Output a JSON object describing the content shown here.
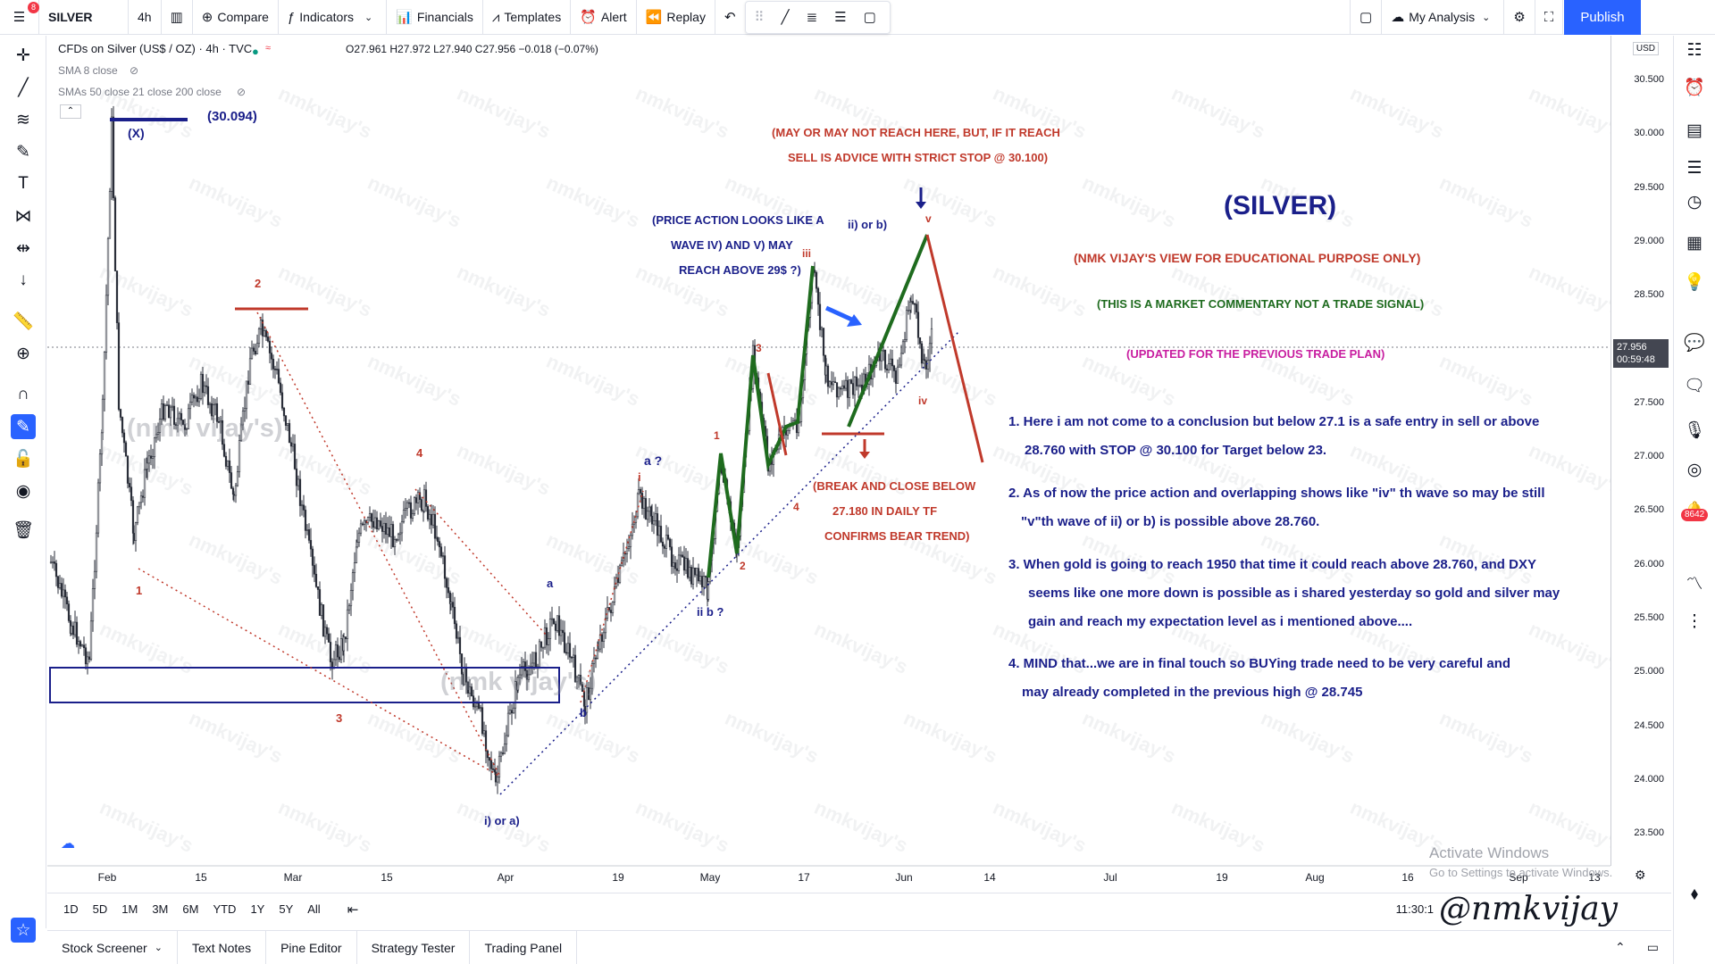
{
  "topbar": {
    "menu_badge": "8",
    "symbol": "SILVER",
    "interval": "4h",
    "compare": "Compare",
    "indicators": "Indicators",
    "financials": "Financials",
    "templates": "Templates",
    "alert": "Alert",
    "replay": "Replay",
    "layout": "My Analysis",
    "publish": "Publish"
  },
  "legend": {
    "instrument": "CFDs on Silver (US$ / OZ) · 4h · TVC",
    "ohlc": "O27.961 H27.972 L27.940 C27.956 −0.018 (−0.07%)",
    "sma1": "SMA 8 close",
    "sma2": "SMAs 50 close 21 close 200 close"
  },
  "price_scale": {
    "currency": "USD",
    "ticks": [
      "30.500",
      "30.000",
      "29.500",
      "29.000",
      "28.500",
      "27.500",
      "27.000",
      "26.500",
      "26.000",
      "25.500",
      "25.000",
      "24.500",
      "24.000",
      "23.500"
    ],
    "last_price": "27.956",
    "countdown": "00:59:48"
  },
  "time_axis": {
    "ticks": [
      "Feb",
      "15",
      "Mar",
      "15",
      "Apr",
      "19",
      "May",
      "17",
      "Jun",
      "14",
      "Jul",
      "19",
      "Aug",
      "16",
      "Sep",
      "13"
    ]
  },
  "annotations": {
    "top_value": "(30.094)",
    "x_label": "(X)",
    "wave_2": "2",
    "wave_4": "4",
    "wave_1": "1",
    "wave_3": "3",
    "wave_a": "a",
    "wave_b": "b",
    "wave_a_q": "a ?",
    "wave_i": "i",
    "wave_ii_b": "ii  b ?",
    "wave_i_or_a": "i)  or a)",
    "sub_1": "1",
    "sub_2": "2",
    "sub_3": "3",
    "sub_4": "4",
    "wave_iii": "iii",
    "wave_iv": "iv",
    "wave_v": "v",
    "wave_ii_or_b": "ii) or b)",
    "may_reach_1": "(MAY OR MAY NOT REACH HERE, BUT, IF IT REACH",
    "may_reach_2": "SELL IS ADVICE WITH STRICT STOP @ 30.100)",
    "price_action_1": "(PRICE ACTION LOOKS LIKE A",
    "price_action_2": "WAVE IV) AND V) MAY",
    "price_action_3": "REACH ABOVE 29$ ?)",
    "break_1": "(BREAK AND CLOSE BELOW",
    "break_2": "27.180  IN DAILY TF",
    "break_3": "CONFIRMS BEAR TREND)",
    "wm_1": "(nmk vijay's)",
    "wm_2": "(nmk vijay's)"
  },
  "commentary": {
    "title": "(SILVER)",
    "subtitle": "(NMK VIJAY'S VIEW FOR EDUCATIONAL PURPOSE ONLY)",
    "disclaimer": "(THIS IS A MARKET COMMENTARY NOT A TRADE SIGNAL)",
    "updated": "(UPDATED FOR THE PREVIOUS TRADE PLAN)",
    "p1_l1": "1. Here i am not come to a conclusion but below 27.1 is a safe entry in sell or above",
    "p1_l2": "28.760 with STOP @ 30.100 for Target below 23.",
    "p2_l1": "2. As of now the price action and overlapping shows like \"iv\" th wave so may be still",
    "p2_l2": "\"v\"th wave of ii) or b) is possible above 28.760.",
    "p3_l1": "3. When gold is going to reach 1950 that time it could reach above 28.760, and DXY",
    "p3_l2": "seems like one more down is possible as i shared yesterday so gold and silver may",
    "p3_l3": "gain and reach my expectation level as i mentioned above....",
    "p4_l1": "4. MIND that...we are in final touch so BUYing trade need to be very careful and",
    "p4_l2": "may already completed in the previous high @ 28.745"
  },
  "watermark_text": "nmkvijay's",
  "activate": {
    "line1": "Activate Windows",
    "line2": "Go to Settings to activate Windows."
  },
  "bottom": {
    "ranges": [
      "1D",
      "5D",
      "1M",
      "3M",
      "6M",
      "YTD",
      "1Y",
      "5Y",
      "All"
    ],
    "clock": "11:30:1",
    "signature": "@nmkvijay"
  },
  "panels": [
    "Stock Screener",
    "Text Notes",
    "Pine Editor",
    "Strategy Tester",
    "Trading Panel"
  ],
  "right_badge": "8642",
  "colors": {
    "accent": "#2962ff",
    "navy": "#1a1f8a",
    "red": "#c0392b",
    "green": "#1e6b1e",
    "magenta": "#c81ea0",
    "badge": "#f23645"
  }
}
